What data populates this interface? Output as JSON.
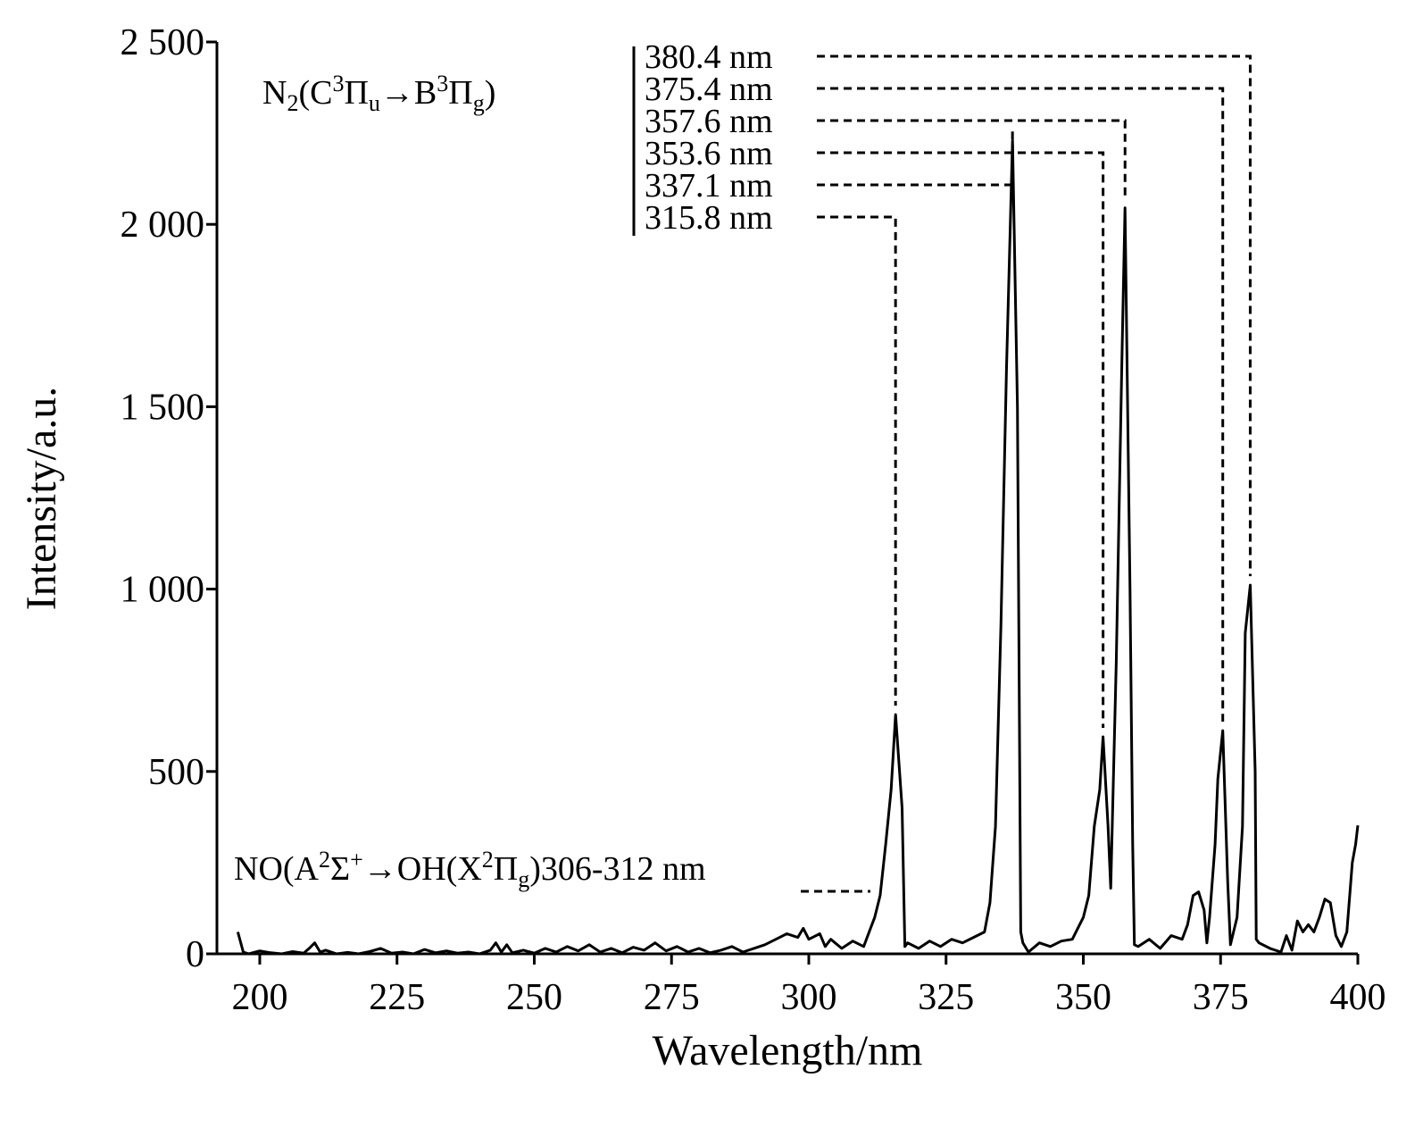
{
  "chart_data": {
    "type": "line",
    "xlabel": "Wavelength/nm",
    "ylabel": "Intensity/a.u.",
    "annotations": {
      "n2": [
        "N",
        "2",
        "(C",
        "3",
        "Π",
        "u",
        "→B",
        "3",
        "Π",
        "g",
        ")"
      ],
      "no": [
        "NO(A",
        "2",
        "Σ",
        "+",
        "→OH(X",
        "2",
        "Π",
        "g",
        ")306-312 nm"
      ]
    },
    "peaks": [
      {
        "label": "380.4 nm",
        "x": 380.4
      },
      {
        "label": "375.4 nm",
        "x": 375.4
      },
      {
        "label": "357.6 nm",
        "x": 357.6
      },
      {
        "label": "353.6 nm",
        "x": 353.6
      },
      {
        "label": "337.1 nm",
        "x": 337.1
      },
      {
        "label": "315.8 nm",
        "x": 315.8
      }
    ],
    "series": [
      {
        "color": "#000000",
        "x": [
          196,
          197,
          198,
          200,
          202,
          204,
          206,
          208,
          209,
          210,
          211,
          212,
          214,
          216,
          218,
          220,
          222,
          224,
          226,
          228,
          230,
          232,
          234,
          236,
          238,
          240,
          242,
          243,
          244,
          245,
          246,
          248,
          250,
          252,
          254,
          256,
          258,
          260,
          262,
          264,
          266,
          268,
          270,
          272,
          274,
          276,
          278,
          280,
          282,
          284,
          286,
          288,
          290,
          292,
          294,
          296,
          298,
          299,
          300,
          302,
          303,
          304,
          306,
          308,
          310,
          311,
          312,
          313,
          314,
          315,
          315.8,
          317,
          317.5,
          318,
          320,
          322,
          324,
          326,
          328,
          330,
          332,
          333,
          334,
          335,
          336,
          337.1,
          338,
          338.6,
          339,
          340,
          342,
          344,
          346,
          348,
          349,
          350,
          351,
          352,
          353,
          353.6,
          354.5,
          355,
          356,
          357,
          357.6,
          358.5,
          359,
          359.3,
          360,
          362,
          364,
          366,
          368,
          369,
          370,
          371,
          372,
          372.5,
          373,
          374,
          374.5,
          375.4,
          376.3,
          376.8,
          378,
          379,
          379.5,
          380.4,
          381.3,
          381.5,
          382,
          384,
          386,
          387,
          388,
          389,
          390,
          391,
          392,
          393,
          394,
          395,
          396,
          397,
          398,
          399,
          399.6,
          400
        ],
        "values": [
          60,
          5,
          0,
          8,
          3,
          0,
          6,
          2,
          15,
          30,
          5,
          10,
          0,
          4,
          0,
          6,
          15,
          2,
          5,
          0,
          12,
          3,
          8,
          2,
          5,
          0,
          10,
          30,
          5,
          25,
          3,
          10,
          2,
          15,
          5,
          20,
          8,
          25,
          5,
          15,
          3,
          18,
          10,
          30,
          8,
          20,
          5,
          15,
          3,
          10,
          20,
          5,
          15,
          25,
          40,
          55,
          45,
          70,
          40,
          55,
          20,
          40,
          15,
          35,
          20,
          60,
          100,
          160,
          300,
          450,
          656,
          400,
          20,
          30,
          15,
          35,
          20,
          40,
          30,
          45,
          60,
          140,
          350,
          900,
          1600,
          2230,
          1500,
          60,
          30,
          5,
          30,
          20,
          35,
          40,
          70,
          100,
          160,
          350,
          450,
          595,
          350,
          180,
          800,
          1600,
          2045,
          1000,
          300,
          25,
          20,
          40,
          15,
          50,
          40,
          80,
          160,
          170,
          120,
          30,
          100,
          300,
          480,
          612,
          200,
          25,
          100,
          350,
          880,
          1011,
          500,
          40,
          30,
          15,
          5,
          50,
          10,
          90,
          60,
          80,
          60,
          100,
          150,
          140,
          50,
          20,
          60,
          250,
          300,
          352
        ]
      }
    ],
    "xlim": [
      192.2,
      400
    ],
    "xticks": [
      200,
      225,
      250,
      275,
      300,
      325,
      350,
      375,
      400
    ],
    "ylim": [
      0,
      2500
    ],
    "yticks": [
      0,
      500,
      {
        "value": 1000,
        "label": "1 000"
      },
      {
        "value": 1500,
        "label": "1 500"
      },
      {
        "value": 2000,
        "label": "2 000"
      },
      {
        "value": 2500,
        "label": "2 500"
      }
    ]
  }
}
